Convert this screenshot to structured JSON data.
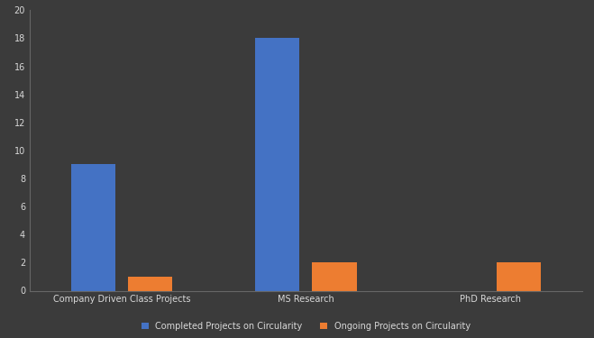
{
  "chart_data": {
    "type": "bar",
    "categories": [
      "Company Driven Class Projects",
      "MS Research",
      "PhD Research"
    ],
    "series": [
      {
        "name": "Completed Projects on Circularity",
        "color": "#4472c4",
        "values": [
          9,
          18,
          0
        ]
      },
      {
        "name": "Ongoing Projects on Circularity",
        "color": "#ed7d31",
        "values": [
          1,
          2,
          2
        ]
      }
    ],
    "ylim": [
      0,
      20
    ],
    "yticks": [
      0,
      2,
      4,
      6,
      8,
      10,
      12,
      14,
      16,
      18,
      20
    ],
    "grid": false,
    "legend": "lower center"
  }
}
